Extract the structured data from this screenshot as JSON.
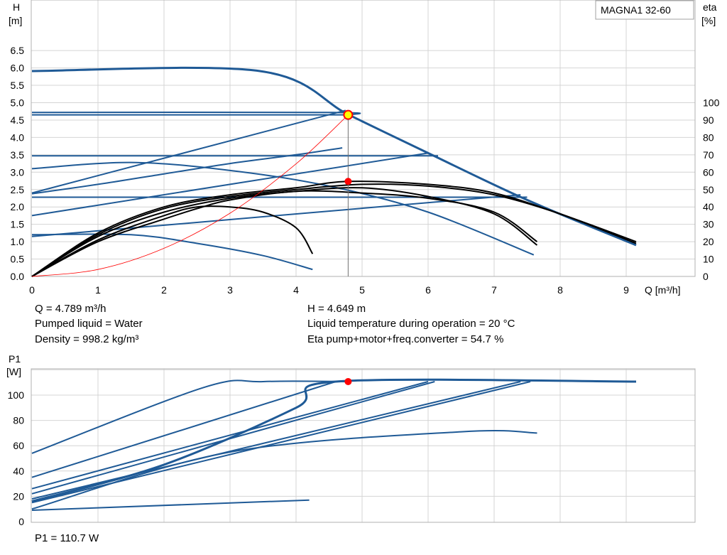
{
  "model": "MAGNA1 32-60",
  "head_chart": {
    "y_label_line1": "H",
    "y_label_line2": "[m]",
    "y2_label_line1": "eta",
    "y2_label_line2": "[%]",
    "x_label": "Q [m³/h]",
    "x_ticks": [
      "0",
      "1",
      "2",
      "3",
      "4",
      "5",
      "6",
      "7",
      "8",
      "9"
    ],
    "y_ticks": [
      "0.0",
      "0.5",
      "1.0",
      "1.5",
      "2.0",
      "2.5",
      "3.0",
      "3.5",
      "4.0",
      "4.5",
      "5.0",
      "5.5",
      "6.0",
      "6.5"
    ],
    "y2_ticks": [
      "0",
      "10",
      "20",
      "30",
      "40",
      "50",
      "60",
      "70",
      "80",
      "90",
      "100"
    ]
  },
  "info": {
    "flow": "Q = 4.789 m³/h",
    "head": "H = 4.649 m",
    "liquid": "Pumped liquid = Water",
    "temperature": "Liquid temperature during operation = 20 °C",
    "density": "Density = 998.2 kg/m³",
    "efficiency": "Eta pump+motor+freq.converter = 54.7 %"
  },
  "power_chart": {
    "y_label_line1": "P1",
    "y_label_line2": "[W]",
    "y_ticks": [
      "0",
      "20",
      "40",
      "60",
      "80",
      "100"
    ],
    "power_readout": "P1 = 110.7 W"
  },
  "colors": {
    "curve_blue": "#1f5a96",
    "eta_black": "#000000",
    "system_curve": "#ff0000",
    "duty_point": "#ff0000",
    "duty_point_highlight": "#ffff00",
    "grid": "#d4d4d4"
  },
  "chart_data": [
    {
      "type": "line",
      "title": "",
      "xlabel": "Q [m³/h]",
      "ylabel": "H [m]",
      "y2label": "eta [%]",
      "xlim": [
        0,
        9.5
      ],
      "ylim": [
        0,
        7
      ],
      "y2lim": [
        0,
        140
      ],
      "grid": true,
      "duty_point": {
        "x": 4.789,
        "y": 4.649,
        "eta": 54.7
      },
      "series": [
        {
          "axis": "H",
          "style": "max_curve",
          "points": [
            [
              0,
              5.91
            ],
            [
              3.45,
              5.91
            ],
            [
              4.8,
              4.65
            ],
            [
              6.0,
              3.55
            ],
            [
              7.5,
              2.2
            ],
            [
              9.15,
              0.9
            ]
          ]
        },
        {
          "axis": "H",
          "points": [
            [
              0,
              4.72
            ],
            [
              4.55,
              4.72
            ],
            [
              4.8,
              4.65
            ]
          ]
        },
        {
          "axis": "H",
          "points": [
            [
              0,
              4.65
            ],
            [
              4.8,
              4.65
            ]
          ]
        },
        {
          "axis": "H",
          "points": [
            [
              0,
              2.4
            ],
            [
              4.75,
              4.78
            ]
          ]
        },
        {
          "axis": "H",
          "points": [
            [
              0,
              3.47
            ],
            [
              6.15,
              3.47
            ]
          ]
        },
        {
          "axis": "H",
          "points": [
            [
              0,
              1.75
            ],
            [
              6.0,
              3.55
            ]
          ]
        },
        {
          "axis": "H",
          "points": [
            [
              0,
              2.28
            ],
            [
              7.5,
              2.28
            ]
          ]
        },
        {
          "axis": "H",
          "points": [
            [
              0,
              1.15
            ],
            [
              7.4,
              2.35
            ]
          ]
        },
        {
          "axis": "H",
          "points": [
            [
              0,
              3.1
            ],
            [
              1.5,
              3.28
            ],
            [
              3.0,
              3.05
            ],
            [
              4.5,
              2.6
            ],
            [
              6.0,
              1.85
            ],
            [
              7.6,
              0.62
            ]
          ]
        },
        {
          "axis": "H",
          "points": [
            [
              0,
              1.2
            ],
            [
              1.5,
              1.2
            ],
            [
              2.5,
              0.95
            ],
            [
              3.5,
              0.6
            ],
            [
              4.25,
              0.2
            ]
          ]
        },
        {
          "axis": "H",
          "points": [
            [
              0,
              2.38
            ],
            [
              1.0,
              2.65
            ],
            [
              2.0,
              2.95
            ],
            [
              3.0,
              3.25
            ],
            [
              4.0,
              3.5
            ],
            [
              4.7,
              3.7
            ]
          ]
        },
        {
          "axis": "eta",
          "points": [
            [
              0,
              0
            ],
            [
              1,
              25
            ],
            [
              2,
              40
            ],
            [
              3,
              47
            ],
            [
              4,
              51
            ],
            [
              4.789,
              54.7
            ],
            [
              6,
              53
            ],
            [
              7,
              48
            ],
            [
              8,
              36
            ],
            [
              9.15,
              20
            ]
          ]
        },
        {
          "axis": "eta",
          "points": [
            [
              0,
              0
            ],
            [
              1,
              24
            ],
            [
              2,
              39
            ],
            [
              3,
              46
            ],
            [
              4,
              50
            ],
            [
              5,
              53
            ],
            [
              6,
              52
            ],
            [
              7,
              47
            ],
            [
              8,
              36
            ],
            [
              9.15,
              19
            ]
          ]
        },
        {
          "axis": "eta",
          "points": [
            [
              0,
              0
            ],
            [
              1,
              23
            ],
            [
              2,
              37
            ],
            [
              3,
              45
            ],
            [
              4,
              49
            ],
            [
              5,
              51
            ],
            [
              6,
              46
            ],
            [
              7,
              36
            ],
            [
              7.65,
              18
            ]
          ]
        },
        {
          "axis": "eta",
          "points": [
            [
              0,
              0
            ],
            [
              1,
              20
            ],
            [
              2,
              33
            ],
            [
              2.5,
              39
            ],
            [
              3,
              44
            ],
            [
              4,
              49
            ],
            [
              5,
              48
            ],
            [
              6,
              45
            ],
            [
              7,
              37
            ],
            [
              7.65,
              20
            ]
          ]
        },
        {
          "axis": "eta",
          "points": [
            [
              0,
              0
            ],
            [
              1,
              21
            ],
            [
              2,
              35
            ],
            [
              2.5,
              40
            ],
            [
              3,
              40
            ],
            [
              3.5,
              37
            ],
            [
              4,
              28
            ],
            [
              4.25,
              13
            ]
          ]
        },
        {
          "axis": "H",
          "style": "system_curve",
          "points": [
            [
              0,
              0
            ],
            [
              1,
              0.2
            ],
            [
              2,
              0.81
            ],
            [
              3,
              1.82
            ],
            [
              4,
              3.24
            ],
            [
              4.789,
              4.649
            ]
          ]
        }
      ]
    },
    {
      "type": "line",
      "title": "",
      "xlabel": "Q [m³/h]",
      "ylabel": "P1 [W]",
      "xlim": [
        0,
        9.5
      ],
      "ylim": [
        0,
        120
      ],
      "grid": true,
      "duty_point": {
        "x": 4.789,
        "y": 110.7
      },
      "series": [
        {
          "style": "max_curve",
          "points": [
            [
              0,
              16
            ],
            [
              2,
              45
            ],
            [
              4,
              90
            ],
            [
              4.6,
              110.7
            ],
            [
              9.15,
              110.7
            ]
          ]
        },
        {
          "points": [
            [
              0,
              54
            ],
            [
              2.6,
              106
            ],
            [
              3.5,
              110.7
            ],
            [
              4.8,
              110.7
            ]
          ]
        },
        {
          "points": [
            [
              0,
              35
            ],
            [
              4.6,
              110.7
            ]
          ]
        },
        {
          "points": [
            [
              0,
              26
            ],
            [
              6.0,
              110.7
            ]
          ]
        },
        {
          "points": [
            [
              0,
              22
            ],
            [
              6.1,
              110.7
            ]
          ]
        },
        {
          "points": [
            [
              0,
              18
            ],
            [
              7.4,
              110.7
            ]
          ]
        },
        {
          "points": [
            [
              0,
              15
            ],
            [
              7.55,
              110.7
            ]
          ]
        },
        {
          "points": [
            [
              0,
              10
            ],
            [
              3.0,
              55
            ],
            [
              6.5,
              71
            ],
            [
              7.65,
              70
            ]
          ]
        },
        {
          "points": [
            [
              0,
              9
            ],
            [
              4.2,
              17
            ]
          ]
        }
      ]
    }
  ]
}
